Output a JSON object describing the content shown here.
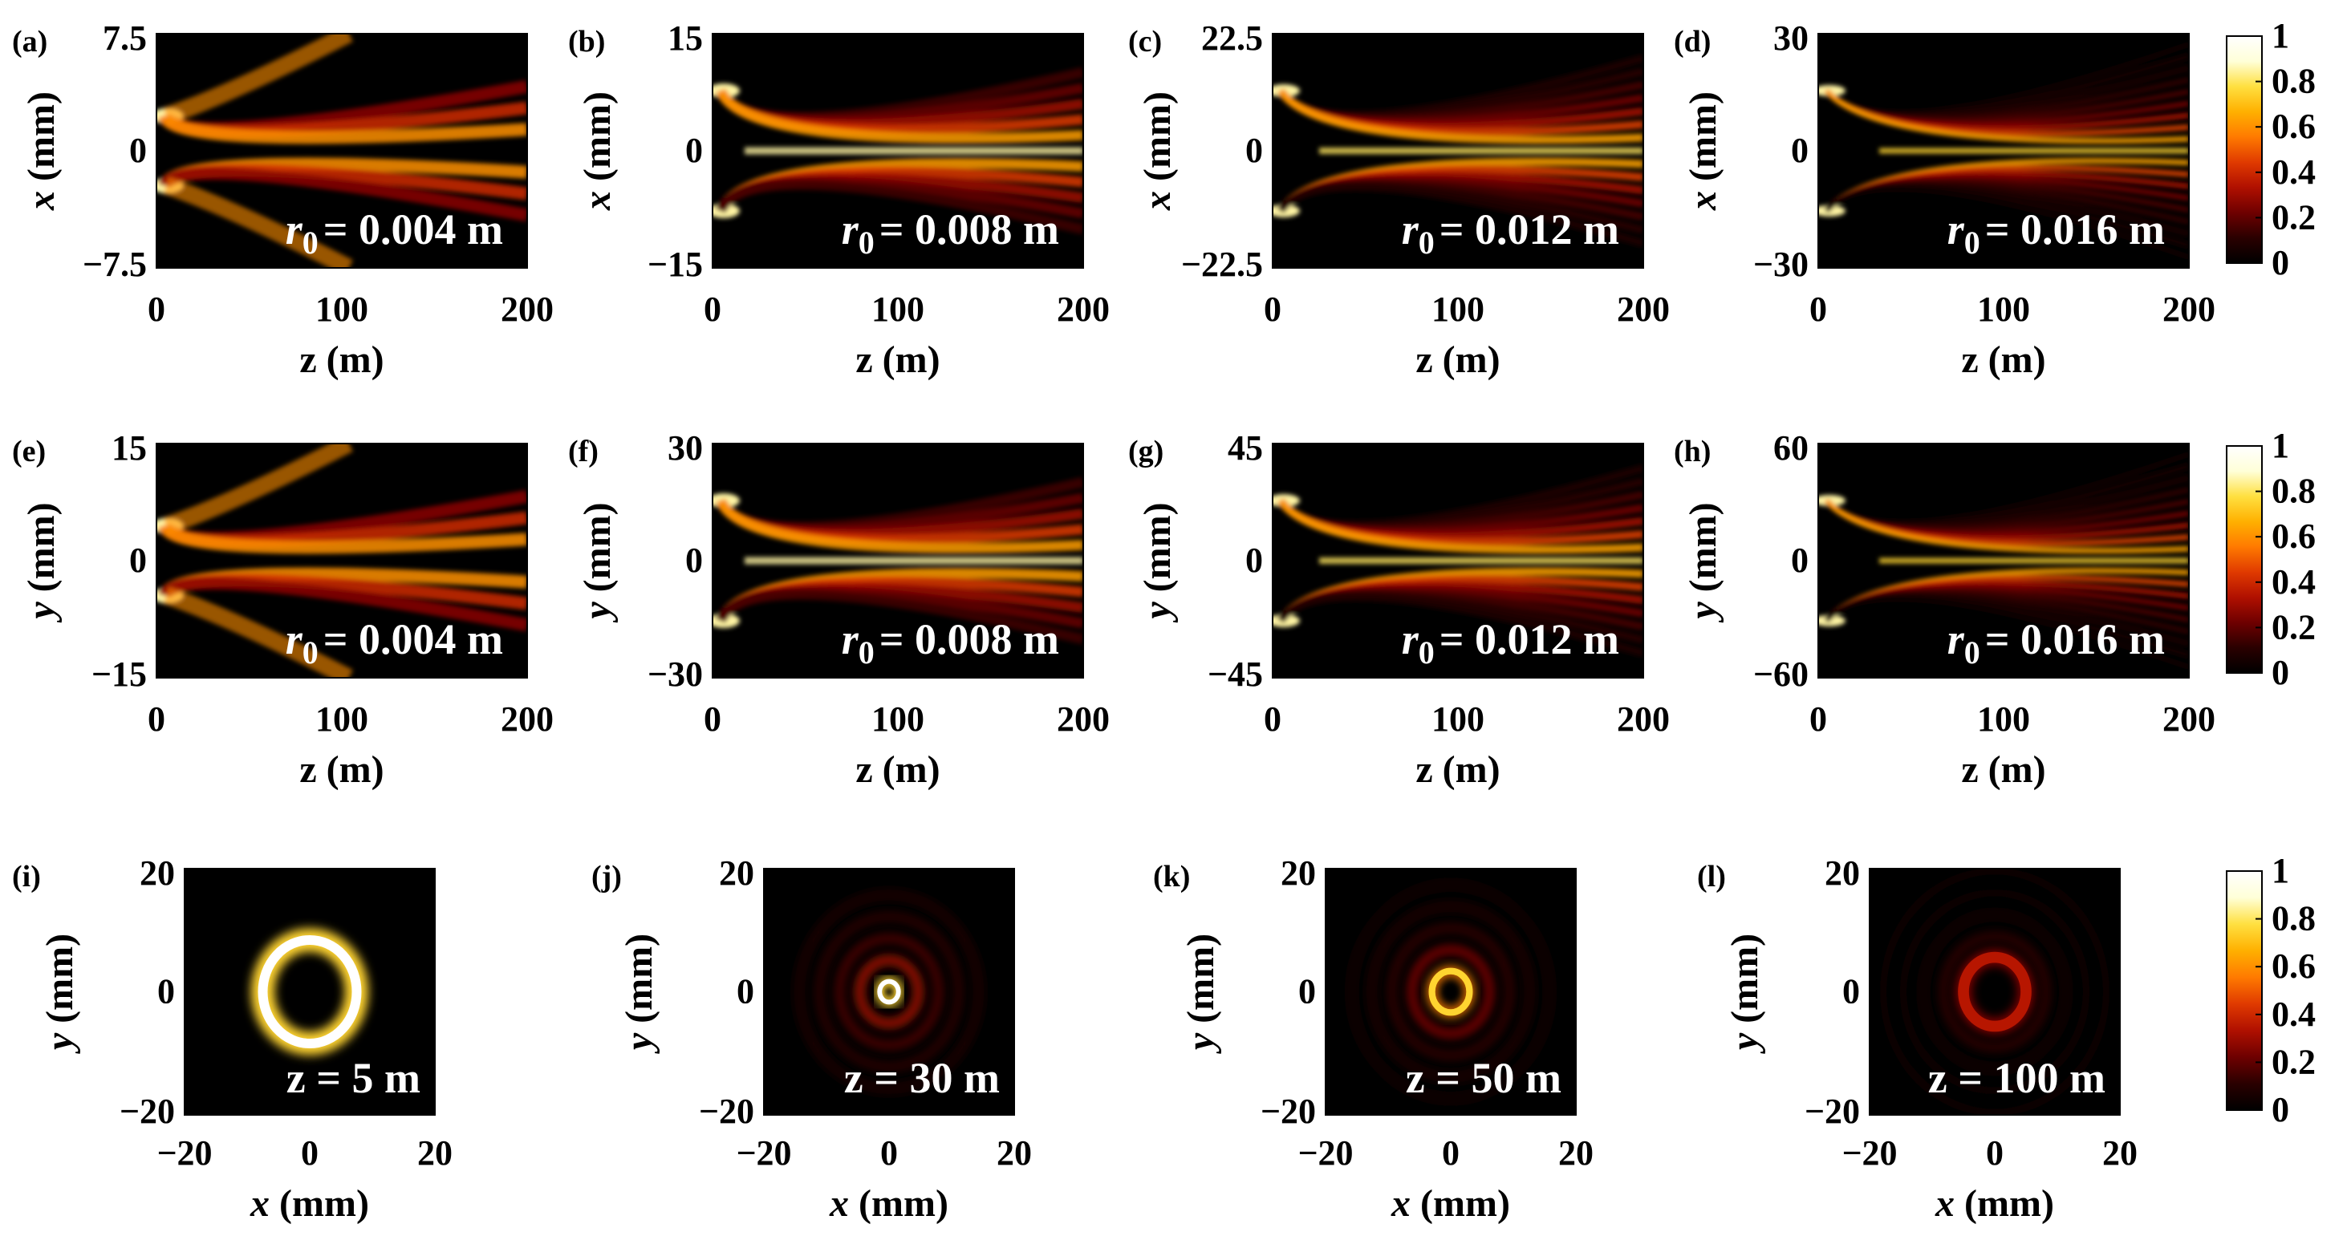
{
  "colors": {
    "colormap": [
      "#000000",
      "#2a0000",
      "#6e0000",
      "#b01000",
      "#e03a00",
      "#ff7a00",
      "#ffb000",
      "#ffe040",
      "#ffffd8",
      "#ffffff"
    ],
    "frame": "#000000"
  },
  "chart_data": [
    {
      "id": "a",
      "type": "heatmap",
      "panel_label": "(a)",
      "row": "xz",
      "r0": "0.004",
      "annotation": "= 0.004 m",
      "xlabel": "z (m)",
      "ylabel_var": "x",
      "ylabel_unit": " (mm)",
      "xlim": [
        0,
        200
      ],
      "ylim": [
        -7.5,
        7.5
      ],
      "xticks": [
        "0",
        "100",
        "200"
      ],
      "yticks": [
        "7.5",
        "0",
        "−7.5"
      ],
      "description": "two off-axis lobes near z = 0 spreading outward"
    },
    {
      "id": "b",
      "type": "heatmap",
      "panel_label": "(b)",
      "row": "xz",
      "r0": "0.008",
      "annotation": "= 0.008 m",
      "xlabel": "z (m)",
      "ylabel_var": "x",
      "ylabel_unit": " (mm)",
      "xlim": [
        0,
        200
      ],
      "ylim": [
        -15,
        15
      ],
      "xticks": [
        "0",
        "100",
        "200"
      ],
      "yticks": [
        "15",
        "0",
        "−15"
      ]
    },
    {
      "id": "c",
      "type": "heatmap",
      "panel_label": "(c)",
      "row": "xz",
      "r0": "0.012",
      "annotation": "= 0.012 m",
      "xlabel": "z (m)",
      "ylabel_var": "x",
      "ylabel_unit": " (mm)",
      "xlim": [
        0,
        200
      ],
      "ylim": [
        -22.5,
        22.5
      ],
      "xticks": [
        "0",
        "100",
        "200"
      ],
      "yticks": [
        "22.5",
        "0",
        "−22.5"
      ]
    },
    {
      "id": "d",
      "type": "heatmap",
      "panel_label": "(d)",
      "row": "xz",
      "r0": "0.016",
      "annotation": "= 0.016 m",
      "xlabel": "z (m)",
      "ylabel_var": "x",
      "ylabel_unit": " (mm)",
      "xlim": [
        0,
        200
      ],
      "ylim": [
        -30,
        30
      ],
      "xticks": [
        "0",
        "100",
        "200"
      ],
      "yticks": [
        "30",
        "0",
        "−30"
      ]
    },
    {
      "id": "e",
      "type": "heatmap",
      "panel_label": "(e)",
      "row": "yz",
      "r0": "0.004",
      "annotation": "= 0.004 m",
      "xlabel": "z (m)",
      "ylabel_var": "y",
      "ylabel_unit": " (mm)",
      "xlim": [
        0,
        200
      ],
      "ylim": [
        -15,
        15
      ],
      "xticks": [
        "0",
        "100",
        "200"
      ],
      "yticks": [
        "15",
        "0",
        "−15"
      ]
    },
    {
      "id": "f",
      "type": "heatmap",
      "panel_label": "(f)",
      "row": "yz",
      "r0": "0.008",
      "annotation": "= 0.008 m",
      "xlabel": "z (m)",
      "ylabel_var": "y",
      "ylabel_unit": " (mm)",
      "xlim": [
        0,
        200
      ],
      "ylim": [
        -30,
        30
      ],
      "xticks": [
        "0",
        "100",
        "200"
      ],
      "yticks": [
        "30",
        "0",
        "−30"
      ]
    },
    {
      "id": "g",
      "type": "heatmap",
      "panel_label": "(g)",
      "row": "yz",
      "r0": "0.012",
      "annotation": "= 0.012 m",
      "xlabel": "z (m)",
      "ylabel_var": "y",
      "ylabel_unit": " (mm)",
      "xlim": [
        0,
        200
      ],
      "ylim": [
        -45,
        45
      ],
      "xticks": [
        "0",
        "100",
        "200"
      ],
      "yticks": [
        "45",
        "0",
        "−45"
      ]
    },
    {
      "id": "h",
      "type": "heatmap",
      "panel_label": "(h)",
      "row": "yz",
      "r0": "0.016",
      "annotation": "= 0.016 m",
      "xlabel": "z (m)",
      "ylabel_var": "y",
      "ylabel_unit": " (mm)",
      "xlim": [
        0,
        200
      ],
      "ylim": [
        -60,
        60
      ],
      "xticks": [
        "0",
        "100",
        "200"
      ],
      "yticks": [
        "60",
        "0",
        "−60"
      ]
    },
    {
      "id": "i",
      "type": "heatmap",
      "panel_label": "(i)",
      "row": "xy",
      "annotation": "z = 5 m",
      "xlabel_var": "x",
      "xlabel_unit": " (mm)",
      "ylabel_var": "y",
      "ylabel_unit": " (mm)",
      "xlim": [
        -20,
        20
      ],
      "ylim": [
        -20,
        20
      ],
      "xticks": [
        "−20",
        "0",
        "20"
      ],
      "yticks": [
        "20",
        "0",
        "−20"
      ],
      "ring": {
        "radius_mm": 7.5,
        "relative_peak": 1.0
      }
    },
    {
      "id": "j",
      "type": "heatmap",
      "panel_label": "(j)",
      "row": "xy",
      "annotation": "z = 30 m",
      "xlabel_var": "x",
      "xlabel_unit": " (mm)",
      "ylabel_var": "y",
      "ylabel_unit": " (mm)",
      "xlim": [
        -20,
        20
      ],
      "ylim": [
        -20,
        20
      ],
      "xticks": [
        "−20",
        "0",
        "20"
      ],
      "yticks": [
        "20",
        "0",
        "−20"
      ],
      "ring": {
        "radius_mm": 1.5,
        "relative_peak": 1.0
      }
    },
    {
      "id": "k",
      "type": "heatmap",
      "panel_label": "(k)",
      "row": "xy",
      "annotation": "z = 50 m",
      "xlabel_var": "x",
      "xlabel_unit": " (mm)",
      "ylabel_var": "y",
      "ylabel_unit": " (mm)",
      "xlim": [
        -20,
        20
      ],
      "ylim": [
        -20,
        20
      ],
      "xticks": [
        "−20",
        "0",
        "20"
      ],
      "yticks": [
        "20",
        "0",
        "−20"
      ],
      "ring": {
        "radius_mm": 3,
        "relative_peak": 0.75
      }
    },
    {
      "id": "l",
      "type": "heatmap",
      "panel_label": "(l)",
      "row": "xy",
      "annotation": "z = 100 m",
      "xlabel_var": "x",
      "xlabel_unit": " (mm)",
      "ylabel_var": "y",
      "ylabel_unit": " (mm)",
      "xlim": [
        -20,
        20
      ],
      "ylim": [
        -20,
        20
      ],
      "xticks": [
        "−20",
        "0",
        "20"
      ],
      "yticks": [
        "20",
        "0",
        "−20"
      ],
      "ring": {
        "radius_mm": 5,
        "relative_peak": 0.35
      }
    }
  ],
  "colorbars": [
    {
      "id": "cb-row1",
      "range": [
        0,
        1
      ],
      "ticks": [
        "1",
        "0.8",
        "0.6",
        "0.4",
        "0.2",
        "0"
      ]
    },
    {
      "id": "cb-row2",
      "range": [
        0,
        1
      ],
      "ticks": [
        "1",
        "0.8",
        "0.6",
        "0.4",
        "0.2",
        "0"
      ]
    },
    {
      "id": "cb-row3",
      "range": [
        0,
        1
      ],
      "ticks": [
        "1",
        "0.8",
        "0.6",
        "0.4",
        "0.2",
        "0"
      ]
    }
  ],
  "r0_symbol": "r",
  "r0_subscript": "0"
}
